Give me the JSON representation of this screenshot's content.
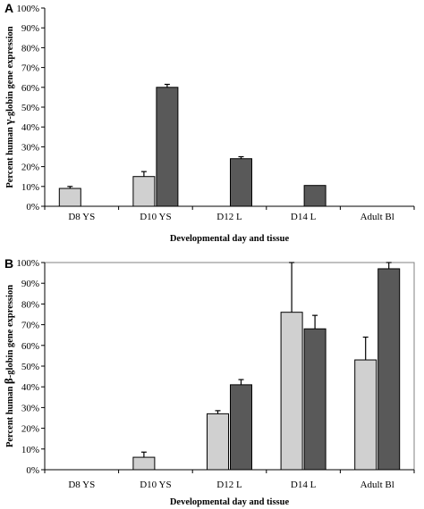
{
  "chart_data": [
    {
      "panel_label": "A",
      "type": "bar",
      "xlabel": "Developmental day and tissue",
      "ylabel_parts": [
        "Percent human ",
        "γ",
        "-globin gene expression"
      ],
      "categories": [
        "D8 YS",
        "D10 YS",
        "D12 L",
        "D14 L",
        "Adult Bl"
      ],
      "yticks": [
        "0%",
        "10%",
        "20%",
        "30%",
        "40%",
        "50%",
        "60%",
        "70%",
        "80%",
        "90%",
        "100%"
      ],
      "ylim": [
        0,
        100
      ],
      "grid": false,
      "series": [
        {
          "color": "#d0d0d0",
          "values": [
            9,
            15,
            null,
            null,
            null
          ],
          "errors": [
            1,
            2.5,
            null,
            null,
            null
          ]
        },
        {
          "color": "#595959",
          "values": [
            null,
            60,
            24,
            10.5,
            0
          ],
          "errors": [
            null,
            1.5,
            1,
            null,
            null
          ]
        }
      ]
    },
    {
      "panel_label": "B",
      "type": "bar",
      "xlabel": "Developmental day and tissue",
      "ylabel_parts": [
        "Percent human ",
        "β",
        "-globin gene expression"
      ],
      "categories": [
        "D8 YS",
        "D10 YS",
        "D12 L",
        "D14 L",
        "Adult Bl"
      ],
      "yticks": [
        "0%",
        "10%",
        "20%",
        "30%",
        "40%",
        "50%",
        "60%",
        "70%",
        "80%",
        "90%",
        "100%"
      ],
      "ylim": [
        0,
        100
      ],
      "grid": false,
      "series": [
        {
          "color": "#d0d0d0",
          "values": [
            0,
            6,
            27,
            76,
            53
          ],
          "errors": [
            null,
            2.5,
            1.5,
            24,
            11
          ]
        },
        {
          "color": "#595959",
          "values": [
            0,
            0,
            41,
            68,
            97
          ],
          "errors": [
            null,
            null,
            2.5,
            6.5,
            3
          ]
        }
      ]
    }
  ]
}
